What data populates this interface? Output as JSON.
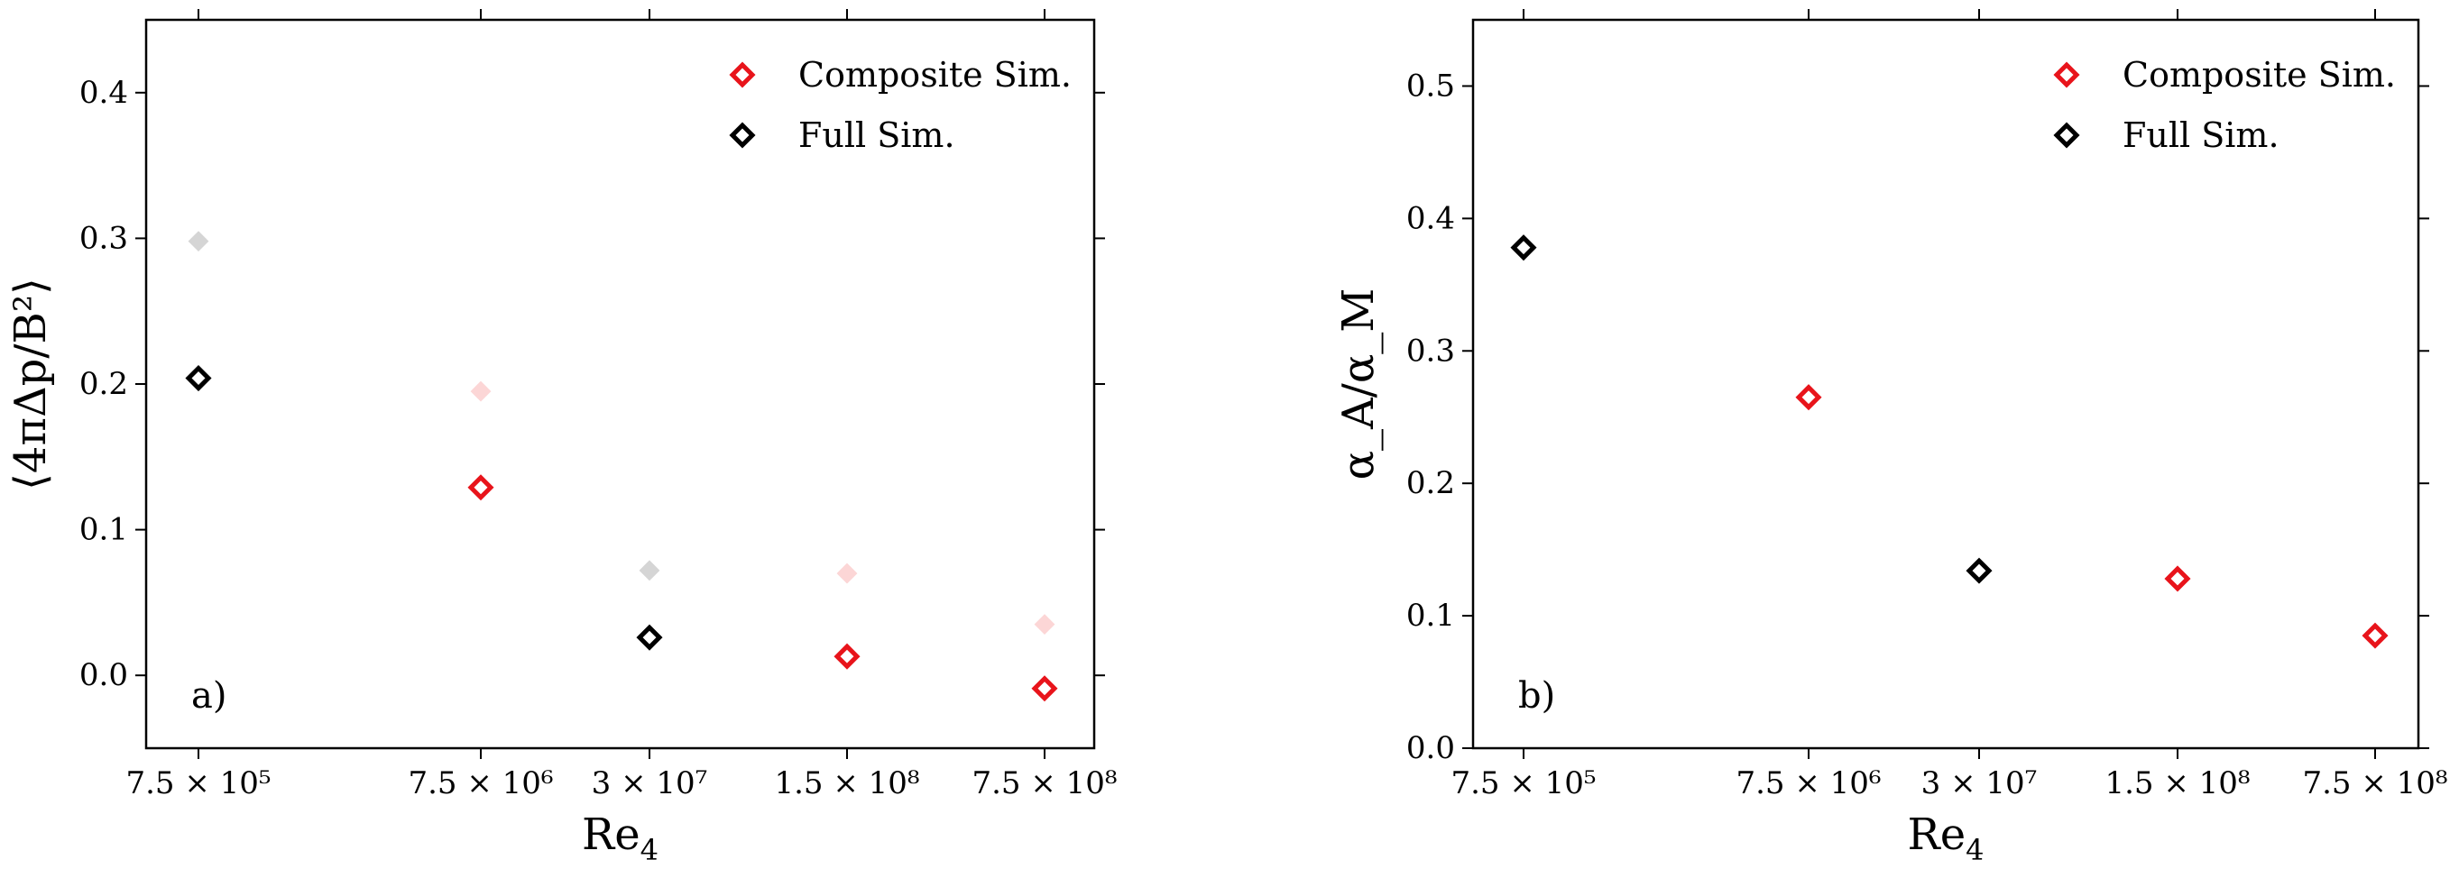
{
  "chart_data": [
    {
      "type": "scatter",
      "panel_label": "a)",
      "xlabel": "Re",
      "xlabel_sub": "4",
      "ylabel": "⟨4πΔp/B²⟩",
      "xscale": "categorical",
      "categories": [
        "7.5 × 10⁵",
        "7.5 × 10⁶",
        "3 × 10⁷",
        "1.5 × 10⁸",
        "7.5 × 10⁸"
      ],
      "ylim": [
        -0.05,
        0.45
      ],
      "yticks": [
        0.0,
        0.1,
        0.2,
        0.3,
        0.4
      ],
      "ytick_labels": [
        "0.0",
        "0.1",
        "0.2",
        "0.3",
        "0.4"
      ],
      "legend_position": "top-right",
      "grid": false,
      "series": [
        {
          "name": "Composite Sim.",
          "marker": "diamond-open",
          "color": "#e8141b",
          "points": [
            {
              "x": "7.5 × 10⁶",
              "y": 0.129
            },
            {
              "x": "1.5 × 10⁸",
              "y": 0.013
            },
            {
              "x": "7.5 × 10⁸",
              "y": -0.009
            }
          ]
        },
        {
          "name": "Full Sim.",
          "marker": "diamond-open",
          "color": "#000000",
          "points": [
            {
              "x": "7.5 × 10⁵",
              "y": 0.204
            },
            {
              "x": "3 × 10⁷",
              "y": 0.026
            }
          ]
        }
      ],
      "faded_points": [
        {
          "x": "7.5 × 10⁵",
          "y": 0.298,
          "color": "#d5d5d5"
        },
        {
          "x": "7.5 × 10⁶",
          "y": 0.195,
          "color": "#fcd6d6"
        },
        {
          "x": "3 × 10⁷",
          "y": 0.072,
          "color": "#d5d5d5"
        },
        {
          "x": "1.5 × 10⁸",
          "y": 0.07,
          "color": "#fcd6d6"
        },
        {
          "x": "7.5 × 10⁸",
          "y": 0.035,
          "color": "#fcd6d6"
        }
      ]
    },
    {
      "type": "scatter",
      "panel_label": "b)",
      "xlabel": "Re",
      "xlabel_sub": "4",
      "ylabel": "α_A/α_M",
      "xscale": "categorical",
      "categories": [
        "7.5 × 10⁵",
        "7.5 × 10⁶",
        "3 × 10⁷",
        "1.5 × 10⁸",
        "7.5 × 10⁸"
      ],
      "ylim": [
        0.0,
        0.55
      ],
      "yticks": [
        0.0,
        0.1,
        0.2,
        0.3,
        0.4,
        0.5
      ],
      "ytick_labels": [
        "0.0",
        "0.1",
        "0.2",
        "0.3",
        "0.4",
        "0.5"
      ],
      "legend_position": "top-right",
      "grid": false,
      "series": [
        {
          "name": "Composite Sim.",
          "marker": "diamond-open",
          "color": "#e8141b",
          "points": [
            {
              "x": "7.5 × 10⁶",
              "y": 0.265
            },
            {
              "x": "1.5 × 10⁸",
              "y": 0.128
            },
            {
              "x": "7.5 × 10⁸",
              "y": 0.085
            }
          ]
        },
        {
          "name": "Full Sim.",
          "marker": "diamond-open",
          "color": "#000000",
          "points": [
            {
              "x": "7.5 × 10⁵",
              "y": 0.378
            },
            {
              "x": "3 × 10⁷",
              "y": 0.134
            }
          ]
        }
      ],
      "faded_points": []
    }
  ]
}
